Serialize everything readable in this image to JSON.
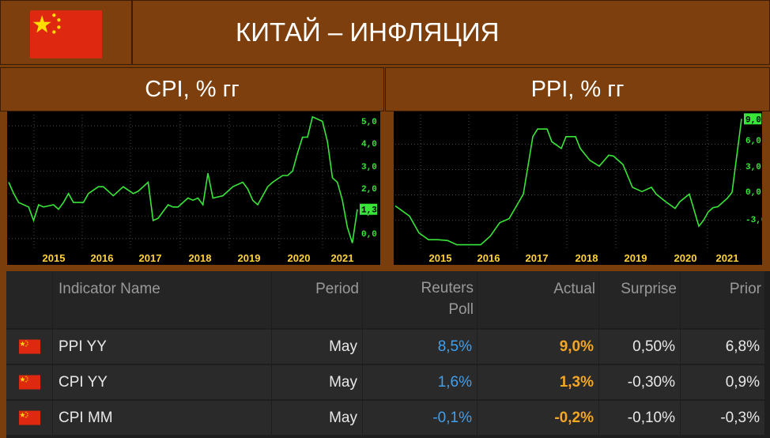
{
  "header": {
    "title": "КИТАЙ – ИНФЛЯЦИЯ"
  },
  "panels": [
    {
      "title": "CPI, % гг"
    },
    {
      "title": "PPI, % гг"
    }
  ],
  "chart_data": [
    {
      "type": "line",
      "series_color": "#38e638",
      "x_tick_labels": [
        "2015",
        "2016",
        "2017",
        "2018",
        "2019",
        "2020",
        "2021"
      ],
      "y_tick_labels": [
        "5,0",
        "4,0",
        "3,0",
        "2,0",
        "1,0",
        "0,0"
      ],
      "ylim": [
        -0.5,
        5.5
      ],
      "xlim": [
        2014.1,
        2021.1
      ],
      "last_value_label": "1,3",
      "x": [
        2014.1,
        2014.2,
        2014.3,
        2014.5,
        2014.6,
        2014.7,
        2014.8,
        2015.0,
        2015.1,
        2015.2,
        2015.3,
        2015.4,
        2015.6,
        2015.7,
        2015.9,
        2016.0,
        2016.2,
        2016.4,
        2016.6,
        2016.7,
        2016.8,
        2016.9,
        2017.0,
        2017.1,
        2017.3,
        2017.4,
        2017.5,
        2017.6,
        2017.7,
        2017.8,
        2017.9,
        2018.0,
        2018.1,
        2018.2,
        2018.4,
        2018.6,
        2018.8,
        2018.9,
        2019.0,
        2019.1,
        2019.3,
        2019.4,
        2019.6,
        2019.7,
        2019.8,
        2019.9,
        2020.0,
        2020.1,
        2020.2,
        2020.4,
        2020.5,
        2020.6,
        2020.7,
        2020.8,
        2020.9,
        2021.0,
        2021.1
      ],
      "y": [
        2.5,
        2.0,
        1.6,
        1.4,
        0.8,
        1.5,
        1.4,
        1.5,
        1.3,
        1.6,
        2.0,
        1.6,
        1.6,
        2.0,
        2.3,
        2.3,
        1.9,
        2.3,
        2.0,
        2.1,
        2.3,
        2.5,
        0.8,
        0.9,
        1.5,
        1.4,
        1.4,
        1.6,
        1.8,
        1.7,
        1.8,
        1.5,
        2.9,
        1.8,
        1.9,
        2.3,
        2.5,
        2.2,
        1.7,
        1.5,
        2.3,
        2.5,
        2.8,
        2.8,
        3.0,
        3.8,
        4.5,
        4.5,
        5.4,
        5.2,
        4.3,
        2.7,
        2.5,
        1.7,
        0.5,
        -0.2,
        1.3
      ]
    },
    {
      "type": "line",
      "series_color": "#38e638",
      "x_tick_labels": [
        "2015",
        "2016",
        "2017",
        "2018",
        "2019",
        "2020",
        "2021"
      ],
      "y_tick_labels": [
        "6,0",
        "3,0",
        "0,0",
        "-3,0"
      ],
      "ylim": [
        -6.5,
        9.5
      ],
      "xlim": [
        2014.1,
        2021.4
      ],
      "last_value_label": "9,0",
      "x": [
        2014.1,
        2014.4,
        2014.6,
        2014.8,
        2015.0,
        2015.2,
        2015.4,
        2015.7,
        2015.9,
        2016.1,
        2016.3,
        2016.5,
        2016.8,
        2017.0,
        2017.1,
        2017.3,
        2017.4,
        2017.6,
        2017.7,
        2017.9,
        2018.0,
        2018.2,
        2018.4,
        2018.6,
        2018.7,
        2018.9,
        2019.1,
        2019.3,
        2019.5,
        2019.6,
        2019.8,
        2020.0,
        2020.1,
        2020.3,
        2020.4,
        2020.5,
        2020.6,
        2020.7,
        2020.8,
        2020.9,
        2021.1,
        2021.2,
        2021.4
      ],
      "y": [
        -1.3,
        -2.5,
        -4.5,
        -5.3,
        -5.3,
        -5.4,
        -5.9,
        -5.9,
        -5.9,
        -4.9,
        -3.3,
        -2.8,
        0.1,
        6.9,
        7.8,
        7.8,
        6.3,
        5.5,
        6.9,
        6.9,
        5.5,
        4.1,
        3.4,
        4.7,
        4.6,
        3.6,
        0.9,
        0.4,
        0.9,
        0.1,
        -0.8,
        -1.6,
        -0.8,
        0.1,
        -1.8,
        -3.7,
        -3.0,
        -2.0,
        -1.5,
        -1.4,
        -0.4,
        0.3,
        9.0
      ]
    }
  ],
  "table": {
    "headers": {
      "name": "Indicator Name",
      "period": "Period",
      "poll_1": "Reuters",
      "poll_2": "Poll",
      "actual": "Actual",
      "surprise": "Surprise",
      "prior": "Prior"
    },
    "poll_color": "#3fa0f0",
    "actual_color": "#f5a623",
    "rows": [
      {
        "name": "PPI YY",
        "period": "May",
        "poll": "8,5%",
        "actual": "9,0%",
        "surprise": "0,50%",
        "prior": "6,8%"
      },
      {
        "name": "CPI YY",
        "period": "May",
        "poll": "1,6%",
        "actual": "1,3%",
        "surprise": "-0,30%",
        "prior": "0,9%"
      },
      {
        "name": "CPI MM",
        "period": "May",
        "poll": "-0,1%",
        "actual": "-0,2%",
        "surprise": "-0,10%",
        "prior": "-0,3%"
      }
    ]
  }
}
